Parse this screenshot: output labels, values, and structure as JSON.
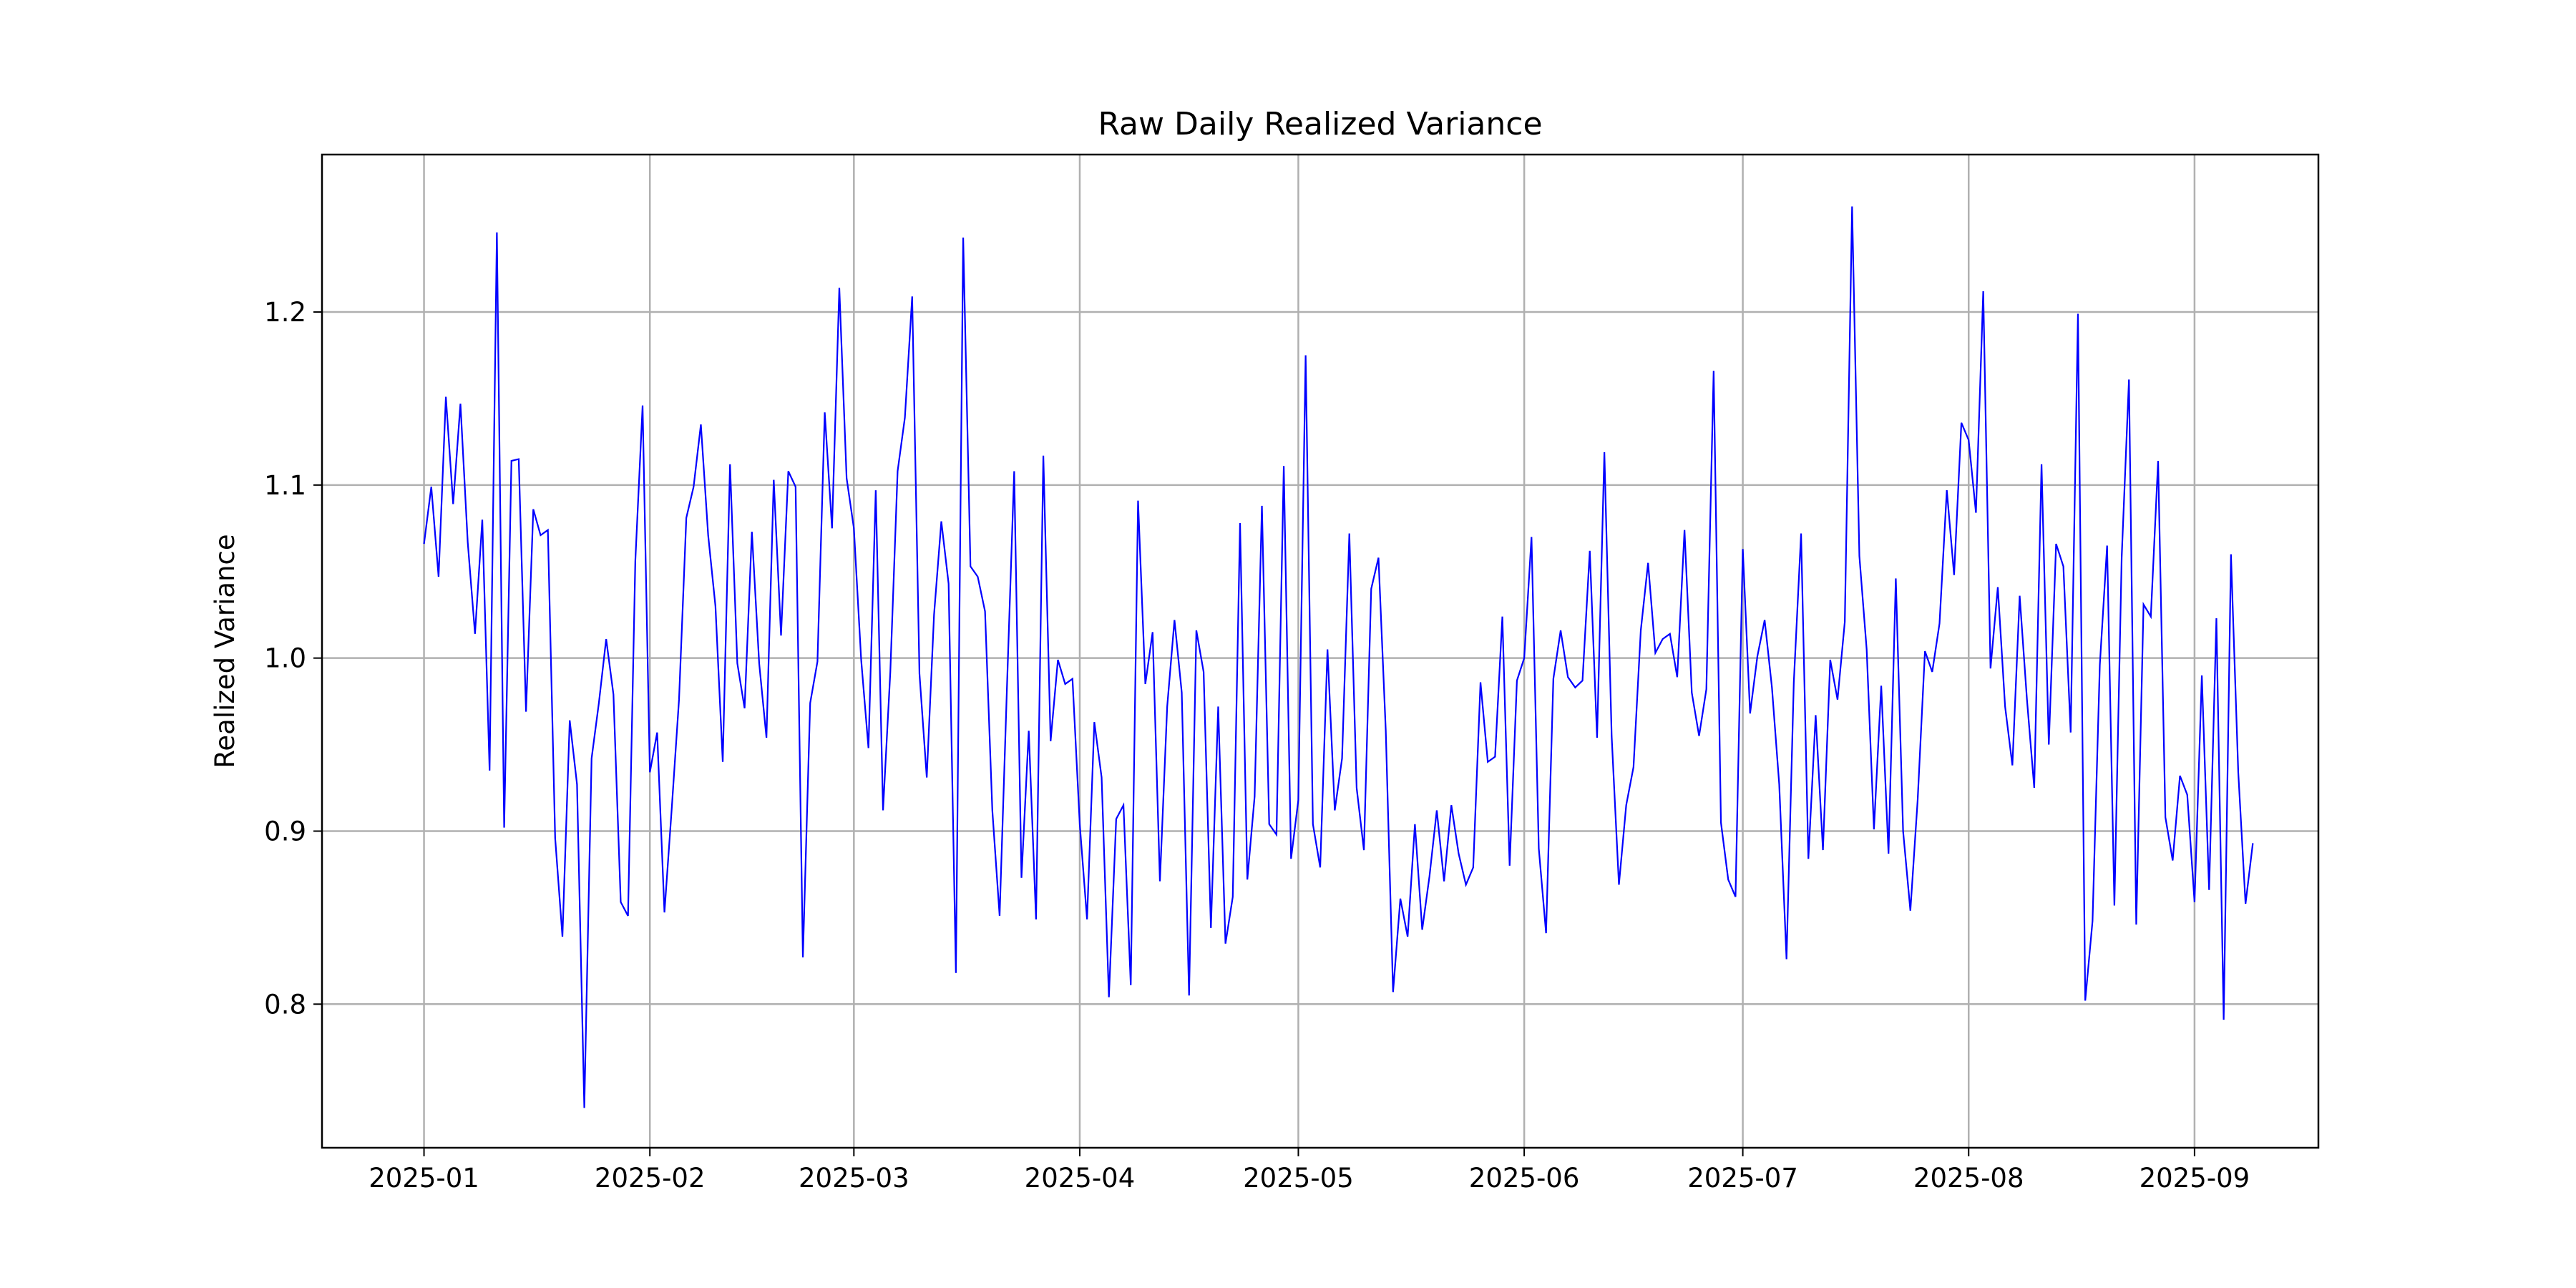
{
  "chart_data": {
    "type": "line",
    "title": "Raw Daily Realized Variance",
    "xlabel": "",
    "ylabel": "Realized Variance",
    "grid": true,
    "x_range": [
      "2024-12-18",
      "2025-09-18"
    ],
    "ylim": [
      0.717,
      1.291
    ],
    "x_ticks": [
      "2025-01",
      "2025-02",
      "2025-03",
      "2025-04",
      "2025-05",
      "2025-06",
      "2025-07",
      "2025-08",
      "2025-09"
    ],
    "x_tick_dates": [
      "2025-01-01",
      "2025-02-01",
      "2025-03-01",
      "2025-04-01",
      "2025-05-01",
      "2025-06-01",
      "2025-07-01",
      "2025-08-01",
      "2025-09-01"
    ],
    "y_ticks": [
      "0.8",
      "0.9",
      "1.0",
      "1.1",
      "1.2"
    ],
    "y_tick_values": [
      0.8,
      0.9,
      1.0,
      1.1,
      1.2
    ],
    "series": [
      {
        "color": "#0000ff",
        "start_date": "2025-01-01",
        "values": [
          1.066,
          1.099,
          1.047,
          1.151,
          1.089,
          1.147,
          1.067,
          1.014,
          1.08,
          0.935,
          1.246,
          0.902,
          1.114,
          1.115,
          0.969,
          1.086,
          1.071,
          1.074,
          0.896,
          0.839,
          0.964,
          0.927,
          0.74,
          0.942,
          0.974,
          1.011,
          0.979,
          0.859,
          0.851,
          1.056,
          1.146,
          0.934,
          0.957,
          0.853,
          0.913,
          0.976,
          1.081,
          1.099,
          1.135,
          1.071,
          1.03,
          0.94,
          1.112,
          0.997,
          0.971,
          1.073,
          0.997,
          0.954,
          1.103,
          1.013,
          1.108,
          1.099,
          0.827,
          0.974,
          0.998,
          1.142,
          1.075,
          1.214,
          1.104,
          1.075,
          0.999,
          0.948,
          1.097,
          0.912,
          0.992,
          1.108,
          1.139,
          1.209,
          0.991,
          0.931,
          1.025,
          1.079,
          1.043,
          0.818,
          1.243,
          1.053,
          1.047,
          1.027,
          0.912,
          0.851,
          0.982,
          1.108,
          0.873,
          0.958,
          0.849,
          1.117,
          0.952,
          0.999,
          0.985,
          0.988,
          0.904,
          0.849,
          0.963,
          0.931,
          0.804,
          0.907,
          0.915,
          0.811,
          1.091,
          0.985,
          1.015,
          0.871,
          0.972,
          1.022,
          0.98,
          0.805,
          1.016,
          0.992,
          0.844,
          0.972,
          0.835,
          0.862,
          1.078,
          0.872,
          0.92,
          1.088,
          0.904,
          0.898,
          1.111,
          0.884,
          0.918,
          1.175,
          0.904,
          0.879,
          1.005,
          0.912,
          0.942,
          1.072,
          0.925,
          0.889,
          1.04,
          1.058,
          0.958,
          0.807,
          0.861,
          0.839,
          0.904,
          0.843,
          0.874,
          0.912,
          0.871,
          0.915,
          0.887,
          0.869,
          0.879,
          0.986,
          0.94,
          0.943,
          1.024,
          0.88,
          0.987,
          1.0,
          1.07,
          0.89,
          0.841,
          0.988,
          1.016,
          0.989,
          0.983,
          0.987,
          1.062,
          0.954,
          1.119,
          0.955,
          0.869,
          0.915,
          0.937,
          1.016,
          1.055,
          1.003,
          1.011,
          1.014,
          0.989,
          1.074,
          0.98,
          0.955,
          0.982,
          1.166,
          0.905,
          0.872,
          0.862,
          1.063,
          0.968,
          1.001,
          1.022,
          0.983,
          0.927,
          0.826,
          0.986,
          1.072,
          0.884,
          0.967,
          0.889,
          0.999,
          0.976,
          1.021,
          1.261,
          1.059,
          1.005,
          0.901,
          0.984,
          0.887,
          1.046,
          0.9,
          0.854,
          0.918,
          1.004,
          0.992,
          1.02,
          1.097,
          1.048,
          1.136,
          1.126,
          1.084,
          1.212,
          0.994,
          1.041,
          0.972,
          0.938,
          1.036,
          0.976,
          0.925,
          1.112,
          0.95,
          1.066,
          1.053,
          0.957,
          1.199,
          0.802,
          0.848,
          0.996,
          1.065,
          0.857,
          1.058,
          1.161,
          0.846,
          1.031,
          1.024,
          1.114,
          0.908,
          0.883,
          0.932,
          0.921,
          0.859,
          0.99,
          0.866,
          1.023,
          0.791,
          1.06,
          0.934,
          0.858,
          0.893
        ]
      }
    ]
  }
}
